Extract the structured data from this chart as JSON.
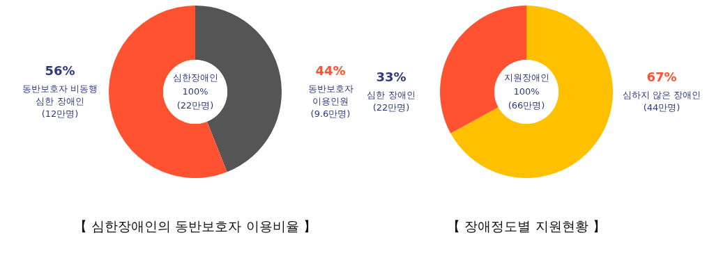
{
  "chart_data": [
    {
      "type": "donut",
      "title": "【 심한장애인의 동반보호자 이용비율 】",
      "categories": [
        "동반보호자\n이용인원\n(9.6만명)",
        "동반보호자 비동행\n심한 장애인\n(12만명)"
      ],
      "values": [
        44,
        56
      ],
      "value_labels": [
        "44%",
        "56%"
      ],
      "colors": [
        "#555555",
        "#fe5230"
      ],
      "annotations": [
        "심한장애인\n100%\n(22만명)"
      ]
    },
    {
      "type": "donut",
      "title": "【 장애정도별 지원현황 】",
      "categories": [
        "심하지 않은 장애인\n(44만명)",
        "심한 장애인\n(22만명)"
      ],
      "values": [
        67,
        33
      ],
      "value_labels": [
        "67%",
        "33%"
      ],
      "colors": [
        "#ffc000",
        "#fe5230"
      ],
      "annotations": [
        "지원장애인\n100%\n(66만명)"
      ]
    }
  ]
}
